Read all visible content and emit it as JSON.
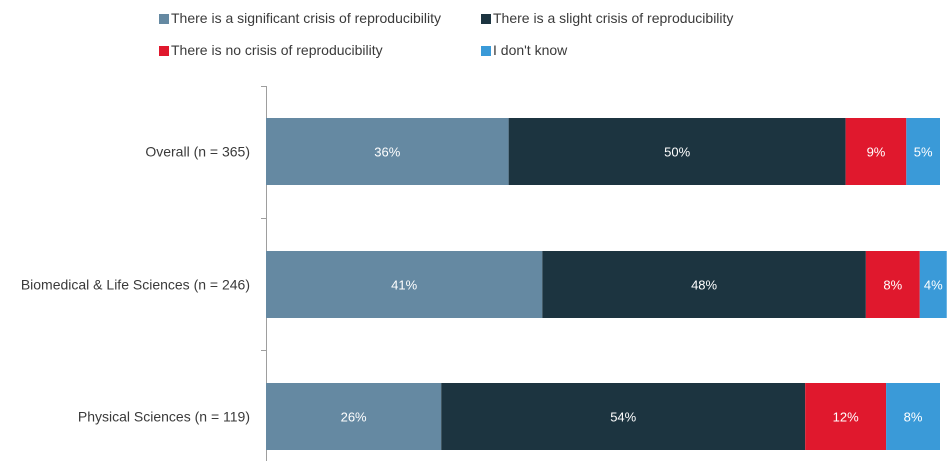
{
  "chart_data": {
    "type": "bar",
    "orientation": "horizontal",
    "stacked": true,
    "title": "",
    "xlabel": "",
    "ylabel": "",
    "xlim": [
      0,
      100
    ],
    "grid": false,
    "legend_position": "top",
    "categories": [
      "Overall (n = 365)",
      "Biomedical & Life Sciences (n = 246)",
      "Physical Sciences (n = 119)"
    ],
    "series": [
      {
        "name": "There is a significant crisis of reproducibility",
        "color": "#6589a2",
        "values": [
          36,
          41,
          26
        ],
        "labels": [
          "36%",
          "41%",
          "26%"
        ]
      },
      {
        "name": "There is a slight crisis of reproducibility",
        "color": "#1c3440",
        "values": [
          50,
          48,
          54
        ],
        "labels": [
          "50%",
          "48%",
          "54%"
        ]
      },
      {
        "name": "There is no crisis of reproducibility",
        "color": "#e0182d",
        "values": [
          9,
          8,
          12
        ],
        "labels": [
          "9%",
          "8%",
          "12%"
        ]
      },
      {
        "name": "I don't know",
        "color": "#3a9ad8",
        "values": [
          5,
          4,
          8
        ],
        "labels": [
          "5%",
          "4%",
          "8%"
        ]
      }
    ]
  }
}
